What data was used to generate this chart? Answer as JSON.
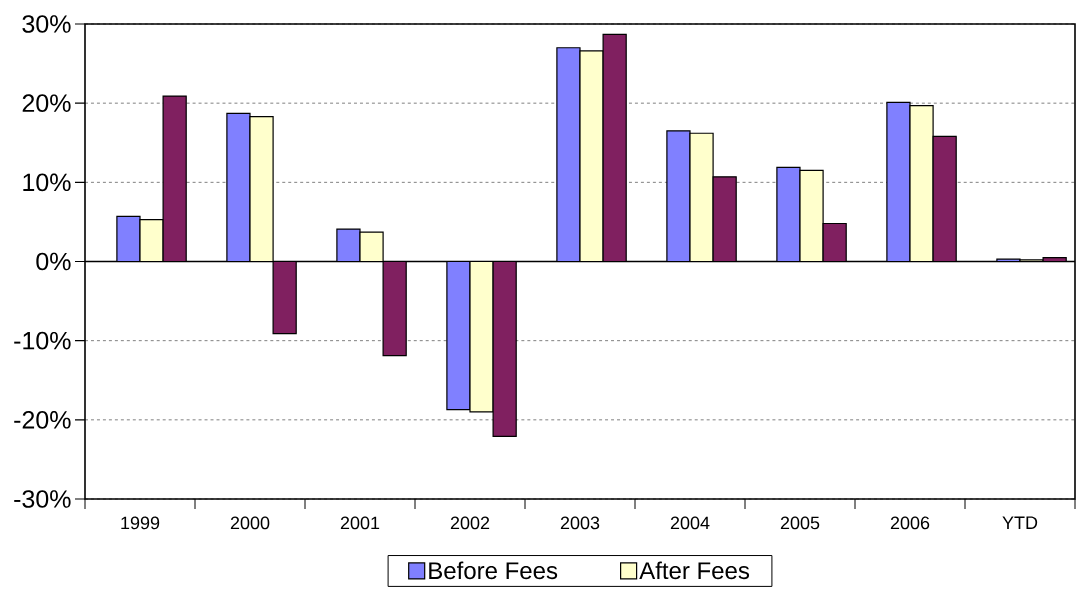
{
  "chart_data": {
    "type": "bar",
    "categories": [
      "1999",
      "2000",
      "2001",
      "2002",
      "2003",
      "2004",
      "2005",
      "2006",
      "YTD"
    ],
    "series": [
      {
        "name": "Before Fees",
        "color": "#8080ff",
        "values": [
          5.7,
          18.7,
          4.1,
          -18.7,
          27.0,
          16.5,
          11.9,
          20.1,
          0.3
        ]
      },
      {
        "name": "After Fees",
        "color": "#ffffcc",
        "values": [
          5.3,
          18.3,
          3.7,
          -19.0,
          26.6,
          16.2,
          11.5,
          19.7,
          0.2
        ]
      },
      {
        "color": "#802060",
        "values": [
          20.9,
          -9.1,
          -11.9,
          -22.1,
          28.7,
          10.7,
          4.8,
          15.8,
          0.5
        ]
      }
    ],
    "ylim": [
      -30,
      30
    ],
    "yticks": [
      {
        "value": -30,
        "label": "-30%"
      },
      {
        "value": -20,
        "label": "-20%"
      },
      {
        "value": -10,
        "label": "-10%"
      },
      {
        "value": 0,
        "label": "0%"
      },
      {
        "value": 10,
        "label": "10%"
      },
      {
        "value": 20,
        "label": "20%"
      },
      {
        "value": 30,
        "label": "30%"
      }
    ],
    "grid": "y",
    "legend": "bottom"
  }
}
